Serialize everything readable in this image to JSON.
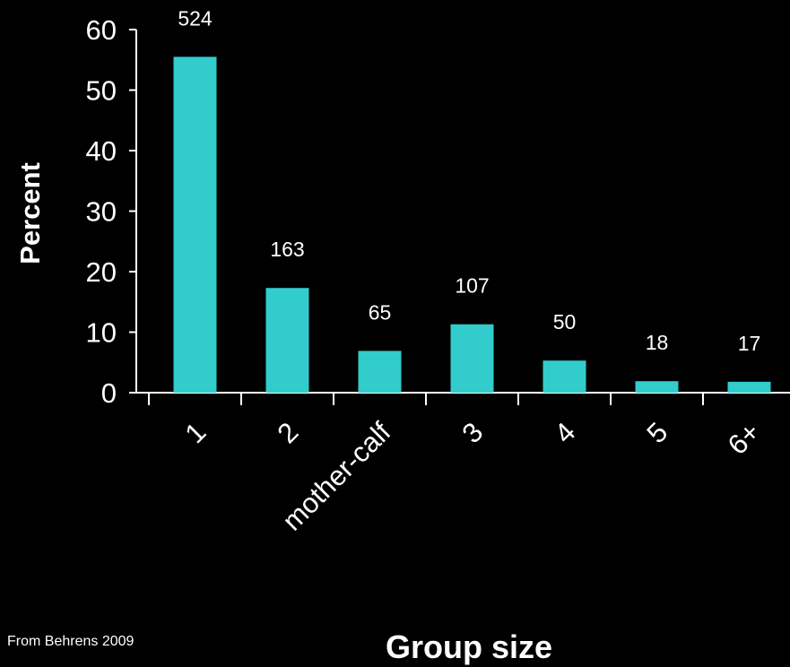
{
  "chart_data": {
    "type": "bar",
    "title": "",
    "xlabel": "Group size",
    "ylabel": "Percent",
    "ylim": [
      0,
      60
    ],
    "yticks": [
      0,
      10,
      20,
      30,
      40,
      50,
      60
    ],
    "categories": [
      "1",
      "2",
      "mother-calf",
      "3",
      "4",
      "5",
      "6+"
    ],
    "values": [
      55.5,
      17.3,
      6.9,
      11.3,
      5.3,
      1.9,
      1.8
    ],
    "data_labels": [
      "524",
      "163",
      "65",
      "107",
      "50",
      "18",
      "17"
    ],
    "bar_color": "#33cccc",
    "grid": false
  },
  "source_note": "From Behrens 2009"
}
